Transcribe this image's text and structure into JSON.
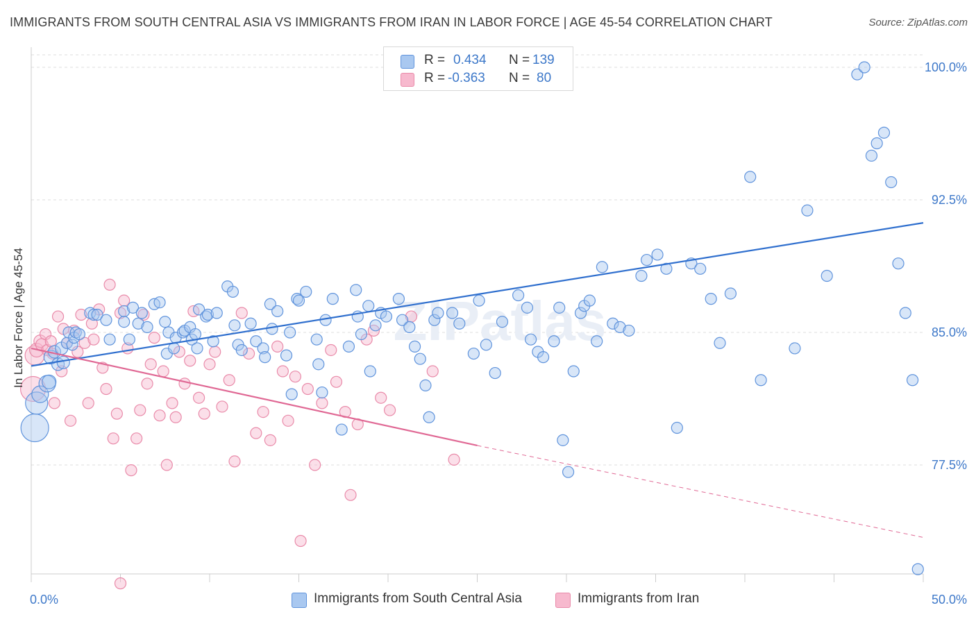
{
  "title": "IMMIGRANTS FROM SOUTH CENTRAL ASIA VS IMMIGRANTS FROM IRAN IN LABOR FORCE | AGE 45-54 CORRELATION CHART",
  "source": "Source: ZipAtlas.com",
  "watermark": "ZIPatlas",
  "legend": {
    "r_label": "R =",
    "n_label": "N =",
    "series": [
      {
        "r": "0.434",
        "n": "139"
      },
      {
        "r": "-0.363",
        "n": "80"
      }
    ]
  },
  "colors": {
    "blue_fill": "#a9c8f0",
    "blue_stroke": "#5f93dc",
    "blue_line": "#2f6fce",
    "pink_fill": "#f7b9ce",
    "pink_stroke": "#e98aa9",
    "pink_line": "#e06894",
    "tick_text": "#3d78c9",
    "grid": "#dcdcdc"
  },
  "chart_data": {
    "type": "scatter",
    "title": "IMMIGRANTS FROM SOUTH CENTRAL ASIA VS IMMIGRANTS FROM IRAN IN LABOR FORCE | AGE 45-54 CORRELATION CHART",
    "xlabel": "",
    "ylabel": "In Labor Force | Age 45-54",
    "xlim": [
      0,
      50
    ],
    "ylim": [
      70.5,
      100.7
    ],
    "x_tick_labels": [
      "0.0%",
      "50.0%"
    ],
    "y_ticks": [
      77.5,
      85.0,
      92.5,
      100.0
    ],
    "y_tick_labels": [
      "77.5%",
      "85.0%",
      "92.5%",
      "100.0%"
    ],
    "grid": true,
    "legend_position": "top-center",
    "series": [
      {
        "name": "Immigrants from South Central Asia",
        "color": "#5f93dc",
        "points": [
          [
            0.2,
            79.6,
            20
          ],
          [
            0.3,
            81.0,
            16
          ],
          [
            0.5,
            81.5,
            12
          ],
          [
            0.9,
            82.1,
            12
          ],
          [
            1.0,
            82.2,
            10
          ],
          [
            1.1,
            83.6,
            10
          ],
          [
            1.3,
            83.9,
            9
          ],
          [
            1.5,
            83.2,
            9
          ],
          [
            1.7,
            84.1,
            9
          ],
          [
            1.8,
            83.3,
            9
          ],
          [
            2.0,
            84.4,
            8
          ],
          [
            2.1,
            85.0,
            8
          ],
          [
            2.3,
            84.3,
            8
          ],
          [
            2.4,
            84.7,
            8
          ],
          [
            2.5,
            85.0,
            8
          ],
          [
            2.7,
            84.9,
            8
          ],
          [
            3.3,
            86.1,
            8
          ],
          [
            3.5,
            86.0,
            8
          ],
          [
            3.7,
            86.0,
            8
          ],
          [
            4.2,
            85.7,
            8
          ],
          [
            4.4,
            84.6,
            8
          ],
          [
            5.2,
            86.2,
            8
          ],
          [
            5.2,
            85.6,
            8
          ],
          [
            5.5,
            84.6,
            8
          ],
          [
            5.7,
            86.4,
            8
          ],
          [
            6.0,
            85.5,
            8
          ],
          [
            6.2,
            86.1,
            8
          ],
          [
            6.5,
            85.3,
            8
          ],
          [
            6.9,
            86.6,
            8
          ],
          [
            7.2,
            86.7,
            8
          ],
          [
            7.5,
            85.6,
            8
          ],
          [
            7.7,
            85.0,
            8
          ],
          [
            7.6,
            83.8,
            8
          ],
          [
            8.0,
            84.1,
            8
          ],
          [
            8.1,
            84.7,
            8
          ],
          [
            8.5,
            85.0,
            8
          ],
          [
            8.6,
            85.1,
            8
          ],
          [
            8.9,
            85.3,
            8
          ],
          [
            9.0,
            84.6,
            8
          ],
          [
            9.2,
            84.9,
            8
          ],
          [
            9.3,
            84.1,
            8
          ],
          [
            9.4,
            86.3,
            8
          ],
          [
            9.8,
            85.9,
            8
          ],
          [
            9.9,
            86.0,
            8
          ],
          [
            10.2,
            84.5,
            8
          ],
          [
            10.4,
            86.1,
            8
          ],
          [
            11.0,
            87.6,
            8
          ],
          [
            11.3,
            87.3,
            8
          ],
          [
            11.4,
            85.4,
            8
          ],
          [
            11.6,
            84.3,
            8
          ],
          [
            11.8,
            84.0,
            8
          ],
          [
            12.3,
            85.5,
            8
          ],
          [
            12.6,
            84.5,
            8
          ],
          [
            13.0,
            84.1,
            8
          ],
          [
            13.1,
            83.6,
            8
          ],
          [
            13.4,
            86.6,
            8
          ],
          [
            13.5,
            85.2,
            8
          ],
          [
            13.8,
            86.2,
            8
          ],
          [
            14.3,
            83.7,
            8
          ],
          [
            14.5,
            85.0,
            8
          ],
          [
            14.6,
            81.5,
            8
          ],
          [
            14.9,
            86.9,
            8
          ],
          [
            15.0,
            86.8,
            8
          ],
          [
            15.4,
            87.3,
            8
          ],
          [
            16.0,
            84.6,
            8
          ],
          [
            16.1,
            83.2,
            8
          ],
          [
            16.3,
            81.6,
            8
          ],
          [
            16.5,
            85.7,
            8
          ],
          [
            16.9,
            86.9,
            8
          ],
          [
            17.4,
            79.5,
            8
          ],
          [
            17.8,
            84.2,
            8
          ],
          [
            18.2,
            87.4,
            8
          ],
          [
            18.3,
            85.9,
            8
          ],
          [
            18.5,
            84.9,
            8
          ],
          [
            18.9,
            86.5,
            8
          ],
          [
            19.0,
            82.8,
            8
          ],
          [
            19.3,
            85.4,
            8
          ],
          [
            19.6,
            86.1,
            8
          ],
          [
            19.9,
            85.9,
            8
          ],
          [
            20.6,
            86.9,
            8
          ],
          [
            20.8,
            85.7,
            8
          ],
          [
            21.2,
            85.3,
            8
          ],
          [
            21.5,
            84.2,
            8
          ],
          [
            21.8,
            83.5,
            8
          ],
          [
            22.1,
            82.0,
            8
          ],
          [
            22.3,
            80.2,
            8
          ],
          [
            22.6,
            85.7,
            8
          ],
          [
            22.8,
            86.1,
            8
          ],
          [
            23.6,
            86.1,
            8
          ],
          [
            24.0,
            85.5,
            8
          ],
          [
            24.8,
            83.8,
            8
          ],
          [
            25.1,
            86.8,
            8
          ],
          [
            25.5,
            84.3,
            8
          ],
          [
            26.0,
            82.7,
            8
          ],
          [
            26.4,
            85.6,
            8
          ],
          [
            27.3,
            87.1,
            8
          ],
          [
            27.8,
            86.4,
            8
          ],
          [
            28.0,
            84.6,
            8
          ],
          [
            28.4,
            83.9,
            8
          ],
          [
            28.7,
            83.6,
            8
          ],
          [
            29.3,
            84.5,
            8
          ],
          [
            29.6,
            86.4,
            8
          ],
          [
            29.8,
            78.9,
            8
          ],
          [
            30.1,
            77.1,
            8
          ],
          [
            30.4,
            82.8,
            8
          ],
          [
            30.8,
            86.1,
            8
          ],
          [
            31.0,
            86.5,
            8
          ],
          [
            31.3,
            86.8,
            8
          ],
          [
            31.7,
            84.5,
            8
          ],
          [
            32.0,
            88.7,
            8
          ],
          [
            32.6,
            85.5,
            8
          ],
          [
            33.0,
            85.3,
            8
          ],
          [
            33.5,
            85.1,
            8
          ],
          [
            34.2,
            88.2,
            8
          ],
          [
            34.5,
            89.1,
            8
          ],
          [
            35.1,
            89.4,
            8
          ],
          [
            35.6,
            88.6,
            8
          ],
          [
            36.2,
            79.6,
            8
          ],
          [
            37.0,
            88.9,
            8
          ],
          [
            37.5,
            88.6,
            8
          ],
          [
            38.1,
            86.9,
            8
          ],
          [
            38.6,
            84.4,
            8
          ],
          [
            39.2,
            87.2,
            8
          ],
          [
            40.3,
            93.8,
            8
          ],
          [
            40.9,
            82.3,
            8
          ],
          [
            42.8,
            84.1,
            8
          ],
          [
            43.5,
            91.9,
            8
          ],
          [
            44.6,
            88.2,
            8
          ],
          [
            46.3,
            99.6,
            8
          ],
          [
            46.7,
            100.0,
            8
          ],
          [
            47.1,
            95.0,
            8
          ],
          [
            47.4,
            95.7,
            8
          ],
          [
            47.8,
            96.3,
            8
          ],
          [
            48.2,
            93.5,
            8
          ],
          [
            48.6,
            88.9,
            8
          ],
          [
            49.0,
            86.1,
            8
          ],
          [
            49.4,
            82.3,
            8
          ],
          [
            49.7,
            71.6,
            8
          ]
        ]
      },
      {
        "name": "Immigrants from Iran",
        "color": "#e98aa9",
        "points": [
          [
            0.1,
            81.8,
            18
          ],
          [
            0.2,
            83.7,
            14
          ],
          [
            0.3,
            84.0,
            10
          ],
          [
            0.5,
            84.5,
            9
          ],
          [
            0.6,
            84.3,
            9
          ],
          [
            0.8,
            84.9,
            8
          ],
          [
            0.9,
            84.0,
            8
          ],
          [
            1.1,
            84.5,
            8
          ],
          [
            1.2,
            83.8,
            8
          ],
          [
            1.3,
            81.0,
            8
          ],
          [
            1.5,
            85.9,
            8
          ],
          [
            1.7,
            82.8,
            8
          ],
          [
            1.8,
            85.2,
            8
          ],
          [
            2.0,
            84.4,
            8
          ],
          [
            2.2,
            80.0,
            8
          ],
          [
            2.4,
            85.1,
            8
          ],
          [
            2.6,
            83.9,
            8
          ],
          [
            2.8,
            86.0,
            8
          ],
          [
            3.0,
            84.4,
            8
          ],
          [
            3.2,
            81.0,
            8
          ],
          [
            3.4,
            85.5,
            8
          ],
          [
            3.5,
            84.6,
            8
          ],
          [
            3.8,
            86.3,
            8
          ],
          [
            4.0,
            83.0,
            8
          ],
          [
            4.2,
            81.8,
            8
          ],
          [
            4.4,
            87.7,
            8
          ],
          [
            4.6,
            79.0,
            8
          ],
          [
            4.8,
            80.4,
            8
          ],
          [
            5.0,
            86.1,
            8
          ],
          [
            5.2,
            86.8,
            8
          ],
          [
            5.4,
            84.1,
            8
          ],
          [
            5.6,
            77.2,
            8
          ],
          [
            5.9,
            79.0,
            8
          ],
          [
            6.1,
            80.6,
            8
          ],
          [
            6.3,
            86.0,
            8
          ],
          [
            6.5,
            82.1,
            8
          ],
          [
            6.7,
            83.2,
            8
          ],
          [
            6.9,
            84.7,
            8
          ],
          [
            7.2,
            80.3,
            8
          ],
          [
            7.4,
            82.8,
            8
          ],
          [
            7.6,
            77.5,
            8
          ],
          [
            7.9,
            81.0,
            8
          ],
          [
            8.1,
            80.2,
            8
          ],
          [
            8.3,
            83.9,
            8
          ],
          [
            8.6,
            82.1,
            8
          ],
          [
            8.9,
            83.4,
            8
          ],
          [
            9.1,
            86.2,
            8
          ],
          [
            9.4,
            81.3,
            8
          ],
          [
            9.7,
            80.4,
            8
          ],
          [
            10.0,
            83.2,
            8
          ],
          [
            10.3,
            83.9,
            8
          ],
          [
            10.7,
            80.8,
            8
          ],
          [
            11.1,
            82.3,
            8
          ],
          [
            11.4,
            77.7,
            8
          ],
          [
            11.8,
            86.1,
            8
          ],
          [
            12.2,
            83.8,
            8
          ],
          [
            12.6,
            79.3,
            8
          ],
          [
            13.0,
            80.5,
            8
          ],
          [
            13.4,
            78.9,
            8
          ],
          [
            13.8,
            84.2,
            8
          ],
          [
            14.1,
            82.8,
            8
          ],
          [
            14.4,
            80.0,
            8
          ],
          [
            14.8,
            82.5,
            8
          ],
          [
            15.1,
            73.2,
            8
          ],
          [
            15.5,
            81.8,
            8
          ],
          [
            15.9,
            77.5,
            8
          ],
          [
            16.3,
            81.0,
            8
          ],
          [
            16.8,
            84.0,
            8
          ],
          [
            17.1,
            82.2,
            8
          ],
          [
            17.6,
            80.5,
            8
          ],
          [
            17.9,
            75.8,
            8
          ],
          [
            18.3,
            79.8,
            8
          ],
          [
            18.8,
            84.6,
            8
          ],
          [
            19.2,
            85.1,
            8
          ],
          [
            19.6,
            81.3,
            8
          ],
          [
            20.1,
            80.6,
            8
          ],
          [
            21.3,
            85.9,
            8
          ],
          [
            22.5,
            82.8,
            8
          ],
          [
            23.7,
            77.8,
            8
          ],
          [
            5.0,
            70.8,
            8
          ]
        ]
      }
    ],
    "trendlines": [
      {
        "series": "Immigrants from South Central Asia",
        "x": [
          0,
          50
        ],
        "y": [
          83.1,
          91.2
        ],
        "style": "solid"
      },
      {
        "series": "Immigrants from Iran",
        "x": [
          0,
          25
        ],
        "y": [
          84.1,
          78.6
        ],
        "style": "solid"
      },
      {
        "series": "Immigrants from Iran",
        "x": [
          25,
          50
        ],
        "y": [
          78.6,
          73.4
        ],
        "style": "dashed"
      }
    ]
  },
  "bottom_legend": [
    {
      "label": "Immigrants from South Central Asia"
    },
    {
      "label": "Immigrants from Iran"
    }
  ]
}
